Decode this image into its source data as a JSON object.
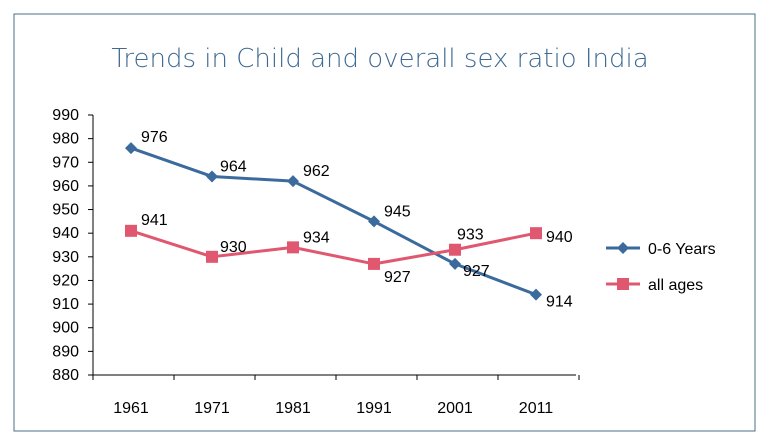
{
  "chart_data": {
    "type": "line",
    "title": "Trends in Child and overall sex ratio India",
    "xlabel": "",
    "ylabel": "",
    "categories": [
      "1961",
      "1971",
      "1981",
      "1991",
      "2001",
      "2011"
    ],
    "ylim": [
      880,
      990
    ],
    "yticks": [
      880,
      890,
      900,
      910,
      920,
      930,
      940,
      950,
      960,
      970,
      980,
      990
    ],
    "grid": false,
    "legend_position": "right",
    "series": [
      {
        "name": "0-6 Years",
        "values": [
          976,
          964,
          962,
          945,
          927,
          914
        ],
        "color": "#3b6a9c",
        "marker": "diamond"
      },
      {
        "name": "all ages",
        "values": [
          941,
          930,
          934,
          927,
          933,
          940
        ],
        "color": "#e05770",
        "marker": "square"
      }
    ],
    "border_color": "#4a6f8a"
  }
}
